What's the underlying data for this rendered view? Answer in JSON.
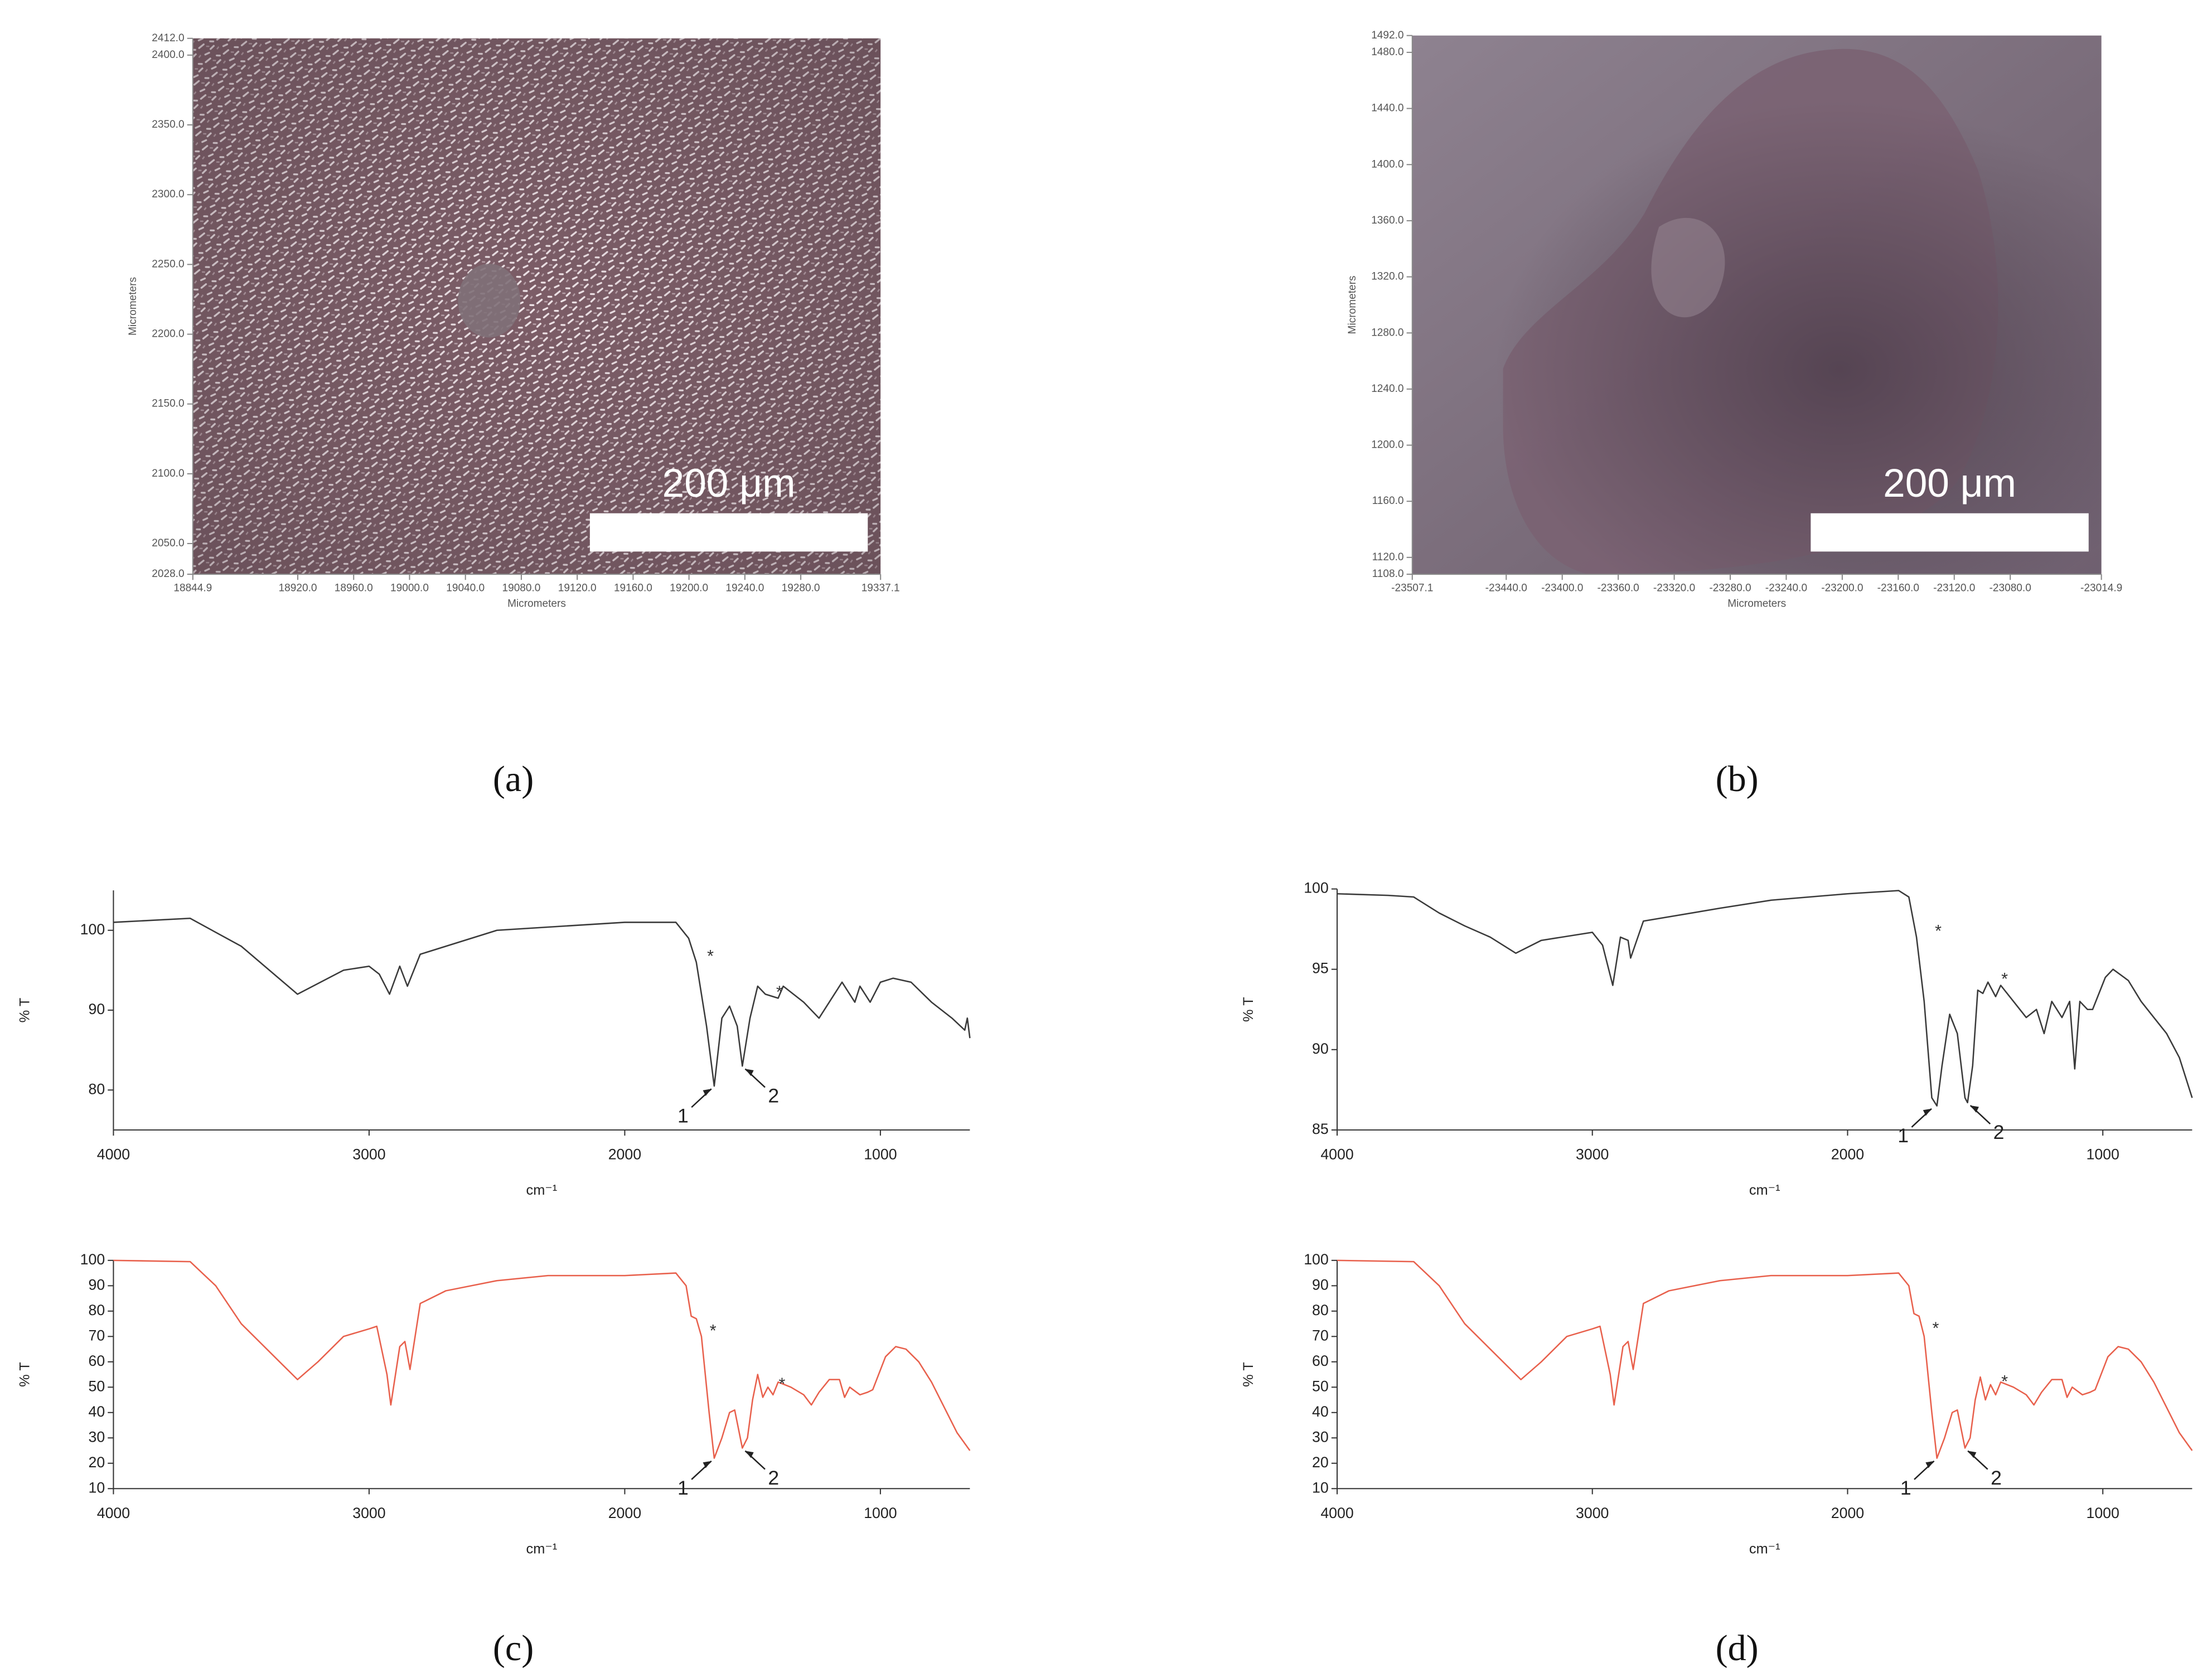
{
  "chart_data": [
    {
      "type": "image",
      "panel_label": "(a)",
      "xlabel": "Micrometers",
      "ylabel": "Micrometers",
      "scale_bar_label": "200 μm",
      "xlim": [
        18844.9,
        19337.1
      ],
      "ylim": [
        2028.0,
        2412.0
      ],
      "xticks": [
        18844.9,
        {
          "value": 18920,
          "label": "18920.0"
        },
        {
          "value": 18960,
          "label": "18960.0"
        },
        {
          "value": 19000,
          "label": "19000.0"
        },
        {
          "value": 19040,
          "label": "19040.0"
        },
        {
          "value": 19080,
          "label": "19080.0"
        },
        {
          "value": 19120,
          "label": "19120.0"
        },
        {
          "value": 19160,
          "label": "19160.0"
        },
        {
          "value": 19200,
          "label": "19200.0"
        },
        {
          "value": 19240,
          "label": "19240.0"
        },
        {
          "value": 19280,
          "label": "19280.0"
        },
        19337.1
      ],
      "yticks": [
        {
          "value": 2028,
          "label": "2028.0"
        },
        {
          "value": 2050,
          "label": "2050.0"
        },
        {
          "value": 2100,
          "label": "2100.0"
        },
        {
          "value": 2150,
          "label": "2150.0"
        },
        {
          "value": 2200,
          "label": "2200.0"
        },
        {
          "value": 2250,
          "label": "2250.0"
        },
        {
          "value": 2300,
          "label": "2300.0"
        },
        {
          "value": 2350,
          "label": "2350.0"
        },
        {
          "value": 2400,
          "label": "2400.0"
        },
        {
          "value": 2412,
          "label": "2412.0"
        }
      ]
    },
    {
      "type": "image",
      "panel_label": "(b)",
      "xlabel": "Micrometers",
      "ylabel": "Micrometers",
      "scale_bar_label": "200 μm",
      "xlim": [
        -23507.1,
        -23014.9
      ],
      "ylim": [
        1108.0,
        1492.0
      ],
      "xticks": [
        -23507.1,
        {
          "value": -23440,
          "label": "-23440.0"
        },
        {
          "value": -23400,
          "label": "-23400.0"
        },
        {
          "value": -23360,
          "label": "-23360.0"
        },
        {
          "value": -23320,
          "label": "-23320.0"
        },
        {
          "value": -23280,
          "label": "-23280.0"
        },
        {
          "value": -23240,
          "label": "-23240.0"
        },
        {
          "value": -23200,
          "label": "-23200.0"
        },
        {
          "value": -23160,
          "label": "-23160.0"
        },
        {
          "value": -23120,
          "label": "-23120.0"
        },
        {
          "value": -23080,
          "label": "-23080.0"
        },
        -23014.9
      ],
      "yticks": [
        {
          "value": 1108,
          "label": "1108.0"
        },
        {
          "value": 1120,
          "label": "1120.0"
        },
        {
          "value": 1160,
          "label": "1160.0"
        },
        {
          "value": 1200,
          "label": "1200.0"
        },
        {
          "value": 1240,
          "label": "1240.0"
        },
        {
          "value": 1280,
          "label": "1280.0"
        },
        {
          "value": 1320,
          "label": "1320.0"
        },
        {
          "value": 1360,
          "label": "1360.0"
        },
        {
          "value": 1400,
          "label": "1400.0"
        },
        {
          "value": 1440,
          "label": "1440.0"
        },
        {
          "value": 1480,
          "label": "1480.0"
        },
        {
          "value": 1492,
          "label": "1492.0"
        }
      ]
    },
    {
      "type": "line",
      "xlabel": "cm⁻¹",
      "ylabel": "% T",
      "xlim": [
        4000,
        650
      ],
      "ylim": [
        75,
        105
      ],
      "xticks": [
        4000,
        3000,
        2000,
        1000
      ],
      "yticks": [
        80,
        90,
        100
      ],
      "x": [
        4000,
        3700,
        3500,
        3280,
        3100,
        3000,
        2960,
        2920,
        2880,
        2850,
        2800,
        2500,
        2000,
        1800,
        1750,
        1720,
        1680,
        1650,
        1620,
        1590,
        1560,
        1540,
        1510,
        1480,
        1450,
        1400,
        1380,
        1300,
        1240,
        1180,
        1150,
        1100,
        1080,
        1040,
        1000,
        950,
        880,
        800,
        720,
        670,
        660,
        650
      ],
      "series": [
        {
          "color": "#3a3a3a",
          "values": [
            101,
            101.5,
            98,
            92,
            95,
            95.5,
            94.5,
            92,
            95.5,
            93,
            97,
            100,
            101,
            101,
            99,
            96,
            88,
            80.5,
            89,
            90.5,
            88,
            83,
            89,
            93,
            92,
            91.5,
            93,
            91,
            89,
            92,
            93.5,
            91,
            93,
            91,
            93.5,
            94,
            93.5,
            91,
            89,
            87.5,
            89,
            86.5
          ]
        }
      ],
      "stars": [
        {
          "label": "*",
          "x": 1700,
          "y": 97
        },
        {
          "label": "*",
          "x": 1430,
          "y": 92.5
        }
      ],
      "peaks": [
        {
          "label": "1",
          "x": 1650,
          "y": 80.5
        },
        {
          "label": "2",
          "x": 1540,
          "y": 83
        }
      ]
    },
    {
      "type": "line",
      "panel_label": "(c)",
      "xlabel": "cm⁻¹",
      "ylabel": "% T",
      "xlim": [
        4000,
        650
      ],
      "ylim": [
        10,
        100
      ],
      "xticks": [
        4000,
        3000,
        2000,
        1000
      ],
      "yticks": [
        10,
        20,
        30,
        40,
        50,
        60,
        70,
        80,
        90,
        100
      ],
      "x": [
        4000,
        3700,
        3600,
        3500,
        3400,
        3280,
        3200,
        3100,
        3000,
        2970,
        2930,
        2915,
        2880,
        2860,
        2840,
        2800,
        2700,
        2500,
        2300,
        2000,
        1800,
        1760,
        1740,
        1720,
        1700,
        1670,
        1650,
        1620,
        1590,
        1570,
        1540,
        1520,
        1500,
        1480,
        1460,
        1440,
        1420,
        1400,
        1350,
        1300,
        1270,
        1240,
        1200,
        1160,
        1140,
        1120,
        1080,
        1050,
        1030,
        980,
        940,
        900,
        850,
        800,
        750,
        700,
        650
      ],
      "series": [
        {
          "color": "#e8604c",
          "values": [
            100,
            99.5,
            90,
            75,
            65,
            53,
            60,
            70,
            73,
            74,
            55,
            43,
            66,
            68,
            57,
            83,
            88,
            92,
            94,
            94,
            95,
            90,
            78,
            77,
            70,
            40,
            22,
            30,
            40,
            41,
            26,
            30,
            45,
            55,
            46,
            50,
            47,
            52,
            50,
            47,
            43,
            48,
            53,
            53,
            46,
            50,
            47,
            48,
            49,
            62,
            66,
            65,
            60,
            52,
            42,
            32,
            25
          ]
        }
      ],
      "stars": [
        {
          "label": "*",
          "x": 1690,
          "y": 73
        },
        {
          "label": "*",
          "x": 1420,
          "y": 52
        }
      ],
      "peaks": [
        {
          "label": "1",
          "x": 1650,
          "y": 22
        },
        {
          "label": "2",
          "x": 1540,
          "y": 26
        }
      ]
    },
    {
      "type": "line",
      "xlabel": "cm⁻¹",
      "ylabel": "% T",
      "xlim": [
        4000,
        650
      ],
      "ylim": [
        85,
        100
      ],
      "xticks": [
        4000,
        3000,
        2000,
        1000
      ],
      "yticks": [
        85,
        90,
        95,
        100
      ],
      "x": [
        4000,
        3800,
        3700,
        3600,
        3500,
        3400,
        3300,
        3200,
        3000,
        2960,
        2920,
        2890,
        2860,
        2850,
        2800,
        2500,
        2300,
        2000,
        1800,
        1760,
        1730,
        1700,
        1670,
        1650,
        1630,
        1600,
        1570,
        1540,
        1530,
        1510,
        1490,
        1470,
        1450,
        1420,
        1400,
        1350,
        1300,
        1260,
        1230,
        1200,
        1160,
        1130,
        1110,
        1090,
        1060,
        1040,
        990,
        960,
        900,
        850,
        800,
        750,
        700,
        660,
        650
      ],
      "series": [
        {
          "color": "#3a3a3a",
          "values": [
            99.7,
            99.6,
            99.5,
            98.5,
            97.7,
            97,
            96,
            96.8,
            97.3,
            96.5,
            94,
            97,
            96.8,
            95.7,
            98,
            98.8,
            99.3,
            99.7,
            99.9,
            99.5,
            97,
            93,
            87,
            86.5,
            89,
            92.2,
            91,
            87,
            86.7,
            89,
            93.7,
            93.5,
            94.2,
            93.3,
            94,
            93,
            92,
            92.5,
            91,
            93,
            92,
            93,
            88.8,
            93,
            92.5,
            92.5,
            94.5,
            95,
            94.3,
            93,
            92,
            91,
            89.5,
            87.5,
            87
          ]
        }
      ],
      "stars": [
        {
          "label": "*",
          "x": 1680,
          "y": 97.5
        },
        {
          "label": "*",
          "x": 1420,
          "y": 94.5
        }
      ],
      "peaks": [
        {
          "label": "1",
          "x": 1660,
          "y": 86.5
        },
        {
          "label": "2",
          "x": 1530,
          "y": 86.7
        }
      ]
    },
    {
      "type": "line",
      "panel_label": "(d)",
      "xlabel": "cm⁻¹",
      "ylabel": "% T",
      "xlim": [
        4000,
        650
      ],
      "ylim": [
        10,
        100
      ],
      "xticks": [
        4000,
        3000,
        2000,
        1000
      ],
      "yticks": [
        10,
        20,
        30,
        40,
        50,
        60,
        70,
        80,
        90,
        100
      ],
      "x": [
        4000,
        3700,
        3600,
        3500,
        3400,
        3280,
        3200,
        3100,
        3000,
        2970,
        2930,
        2915,
        2880,
        2860,
        2840,
        2800,
        2700,
        2500,
        2300,
        2000,
        1800,
        1760,
        1740,
        1720,
        1700,
        1670,
        1650,
        1620,
        1590,
        1570,
        1540,
        1520,
        1500,
        1480,
        1460,
        1440,
        1420,
        1400,
        1350,
        1300,
        1270,
        1240,
        1200,
        1160,
        1140,
        1120,
        1080,
        1050,
        1030,
        980,
        940,
        900,
        850,
        800,
        750,
        700,
        650
      ],
      "series": [
        {
          "color": "#e8604c",
          "values": [
            100,
            99.5,
            90,
            75,
            65,
            53,
            60,
            70,
            73,
            74,
            55,
            43,
            66,
            68,
            57,
            83,
            88,
            92,
            94,
            94,
            95,
            90,
            79,
            78,
            70,
            40,
            22,
            30,
            40,
            41,
            26,
            30,
            45,
            54,
            45,
            51,
            47,
            52,
            50,
            47,
            43,
            48,
            53,
            53,
            46,
            50,
            47,
            48,
            49,
            62,
            66,
            65,
            60,
            52,
            42,
            32,
            25
          ]
        }
      ],
      "stars": [
        {
          "label": "*",
          "x": 1690,
          "y": 74
        },
        {
          "label": "*",
          "x": 1420,
          "y": 53
        }
      ],
      "peaks": [
        {
          "label": "1",
          "x": 1650,
          "y": 22
        },
        {
          "label": "2",
          "x": 1540,
          "y": 26
        }
      ]
    }
  ]
}
